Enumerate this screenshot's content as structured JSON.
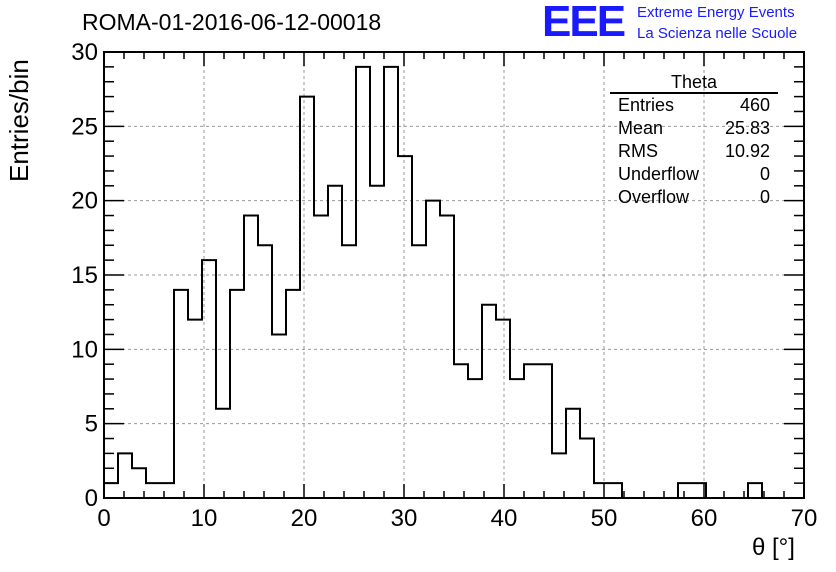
{
  "title": "ROMA-01-2016-06-12-00018",
  "logo": {
    "letters": "EEE",
    "line1": "Extreme Energy Events",
    "line2": "La Scienza nelle Scuole",
    "color": "#1a1aff"
  },
  "stats_box": {
    "title": "Theta",
    "rows": [
      {
        "label": "Entries",
        "value": "460"
      },
      {
        "label": "Mean",
        "value": "25.83"
      },
      {
        "label": "RMS",
        "value": "10.92"
      },
      {
        "label": "Underflow",
        "value": "0"
      },
      {
        "label": "Overflow",
        "value": "0"
      }
    ]
  },
  "chart_data": {
    "type": "bar",
    "style": "step-histogram",
    "bin_edges_start": 0,
    "bin_width": 1.4,
    "values": [
      1,
      3,
      2,
      1,
      1,
      14,
      12,
      16,
      6,
      14,
      19,
      17,
      11,
      14,
      27,
      19,
      21,
      17,
      29,
      21,
      29,
      23,
      17,
      20,
      19,
      9,
      8,
      13,
      12,
      8,
      9,
      9,
      3,
      6,
      4,
      1,
      1,
      0,
      0,
      0,
      0,
      1,
      1,
      0,
      0,
      0,
      1,
      0,
      0,
      0
    ],
    "xlabel": "θ [°]",
    "ylabel": "Entries/bin",
    "xlim": [
      0,
      70
    ],
    "ylim": [
      0,
      30
    ],
    "xticks": [
      0,
      10,
      20,
      30,
      40,
      50,
      60,
      70
    ],
    "yticks": [
      0,
      5,
      10,
      15,
      20,
      25,
      30
    ],
    "grid": true,
    "line_color": "#000000"
  }
}
